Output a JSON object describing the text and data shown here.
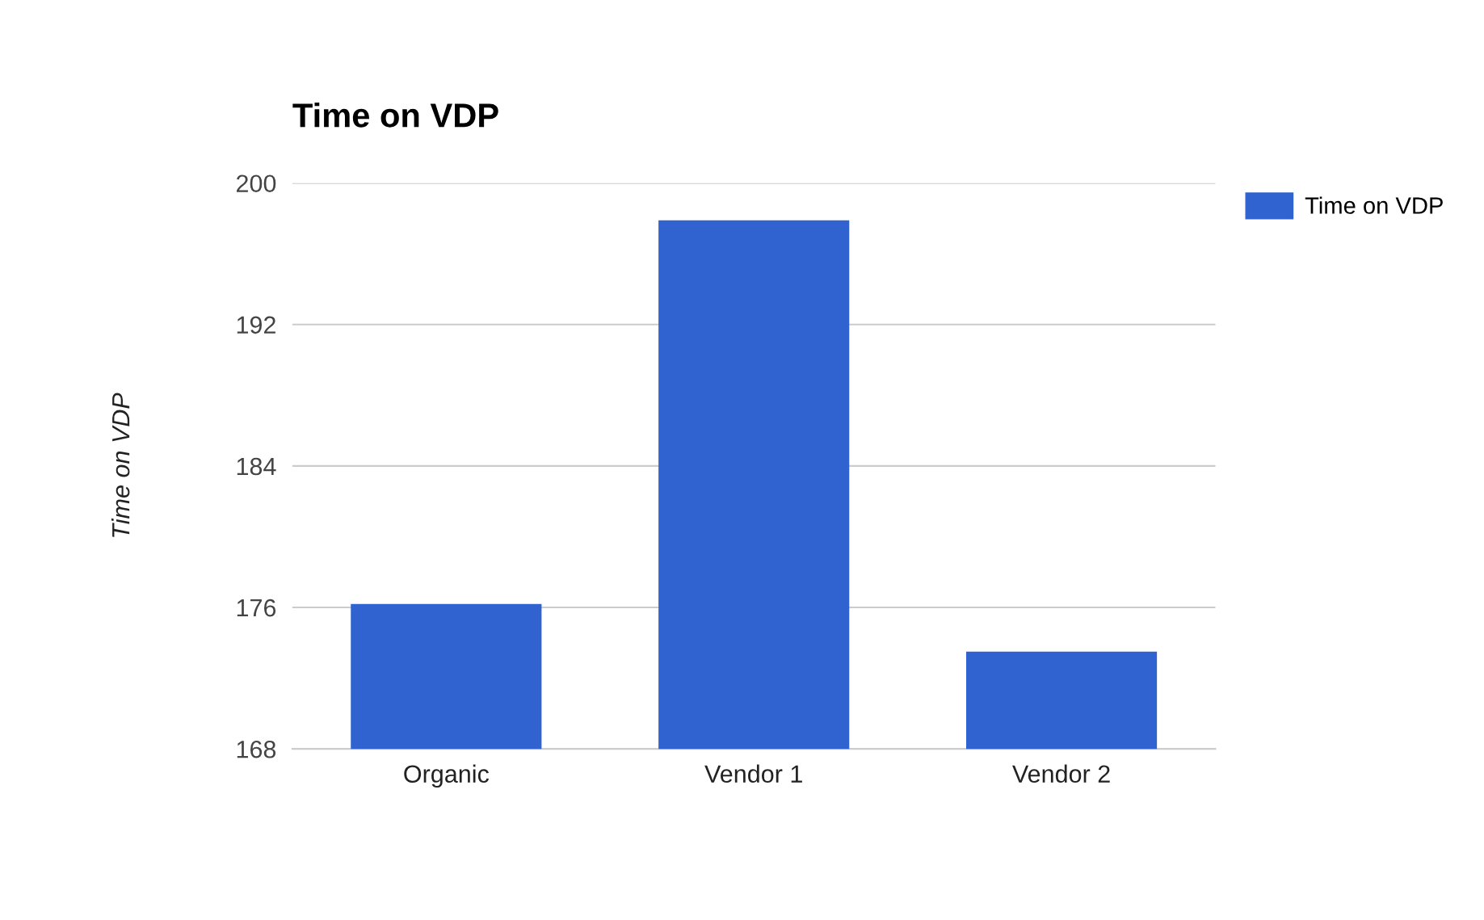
{
  "chart_data": {
    "type": "bar",
    "title": "Time on VDP",
    "ylabel": "Time on VDP",
    "categories": [
      "Organic",
      "Vendor 1",
      "Vendor 2"
    ],
    "series": [
      {
        "name": "Time on VDP",
        "color": "#3063cf",
        "values": [
          176.2,
          197.9,
          173.5
        ]
      }
    ],
    "ylim": [
      168,
      200
    ],
    "yticks": [
      168,
      176,
      184,
      192,
      200
    ],
    "grid": "y",
    "legend": "top right"
  }
}
